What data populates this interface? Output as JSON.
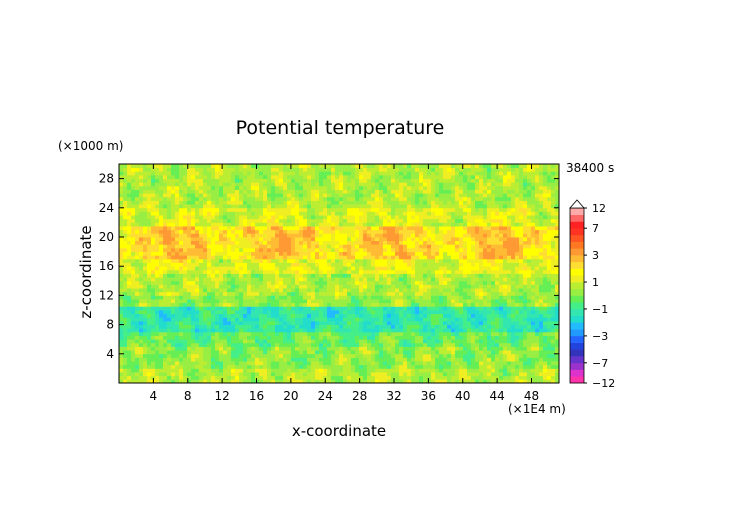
{
  "chart_data": {
    "type": "heatmap",
    "title": "Potential temperature",
    "time_label": "38400 s",
    "xlabel": "x-coordinate",
    "ylabel": "z-coordinate",
    "x_unit": "(×1E4 m)",
    "y_unit": "(×1000 m)",
    "xlim": [
      0,
      51.2
    ],
    "ylim": [
      0,
      30
    ],
    "x_ticks": [
      4,
      8,
      12,
      16,
      20,
      24,
      28,
      32,
      36,
      40,
      44,
      48
    ],
    "y_ticks": [
      4,
      8,
      12,
      16,
      20,
      24,
      28
    ],
    "colorbar": {
      "labels": [
        "12",
        "7",
        "3",
        "1",
        "−1",
        "−3",
        "−7",
        "−12"
      ],
      "label_values": [
        12,
        7,
        3,
        1,
        -1,
        -3,
        -7,
        -12
      ],
      "levels": [
        -12,
        -10,
        -8,
        -7,
        -6,
        -5,
        -4,
        -3,
        -2.5,
        -2,
        -1.5,
        -1,
        -0.5,
        0,
        0.5,
        1,
        1.5,
        2,
        2.5,
        3,
        4,
        5,
        6,
        7,
        8,
        10,
        12
      ],
      "colors": [
        "#ff33aa",
        "#dd33cc",
        "#9933cc",
        "#6633cc",
        "#3333bb",
        "#2244dd",
        "#2266ff",
        "#2299ff",
        "#22bbff",
        "#22ddcc",
        "#33e6b0",
        "#44ee88",
        "#66ee55",
        "#99ee44",
        "#bbee33",
        "#eeee22",
        "#ffff00",
        "#ffdd33",
        "#ffbb33",
        "#ff9933",
        "#ff7722",
        "#ff5522",
        "#ff3322",
        "#ff2222",
        "#ff6666",
        "#ffaaaa"
      ]
    },
    "bands": [
      {
        "z0": 0,
        "z1": 2,
        "value": 0.6
      },
      {
        "z0": 2,
        "z1": 5,
        "value": 0.2
      },
      {
        "z0": 5,
        "z1": 7,
        "value": -0.3
      },
      {
        "z0": 7,
        "z1": 10.5,
        "value": -1.2
      },
      {
        "z0": 10.5,
        "z1": 12,
        "value": 0.2
      },
      {
        "z0": 12,
        "z1": 15,
        "value": 0.6
      },
      {
        "z0": 15,
        "z1": 17,
        "value": 1.2
      },
      {
        "z0": 17,
        "z1": 21.5,
        "value": 2.3
      },
      {
        "z0": 21.5,
        "z1": 24,
        "value": 1.1
      },
      {
        "z0": 24,
        "z1": 30,
        "value": 0.6
      }
    ]
  }
}
